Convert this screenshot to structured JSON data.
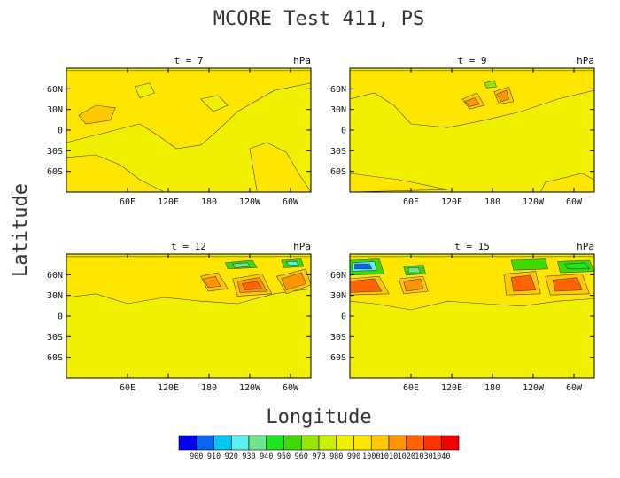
{
  "chart_data": {
    "type": "contour",
    "title": "MCORE Test 411, PS",
    "xlabel": "Longitude",
    "ylabel": "Latitude",
    "units": "hPa",
    "x_ticks": [
      "60E",
      "120E",
      "180",
      "120W",
      "60W"
    ],
    "y_ticks": [
      "60N",
      "30N",
      "0",
      "30S",
      "60S"
    ],
    "colorbar": {
      "levels": [
        900,
        910,
        920,
        930,
        940,
        950,
        960,
        970,
        980,
        990,
        1000,
        1010,
        1020,
        1030,
        1040
      ],
      "labels": [
        "900",
        "910",
        "920",
        "930",
        "940",
        "950",
        "960",
        "970",
        "980",
        "990",
        "1000",
        "1010",
        "1020",
        "1030",
        "1040"
      ],
      "colors": [
        "#0000f0",
        "#0a64f0",
        "#00c8f0",
        "#5af0f0",
        "#6ee68c",
        "#1ee61e",
        "#3cdc00",
        "#96e600",
        "#c8f000",
        "#f0f000",
        "#ffe600",
        "#ffc800",
        "#ff9600",
        "#ff6400",
        "#ff3200",
        "#f00000"
      ]
    },
    "panels": [
      {
        "label": "t = 7",
        "units": "hPa"
      },
      {
        "label": "t = 9",
        "units": "hPa"
      },
      {
        "label": "t = 12",
        "units": "hPa"
      },
      {
        "label": "t = 15",
        "units": "hPa"
      }
    ]
  }
}
